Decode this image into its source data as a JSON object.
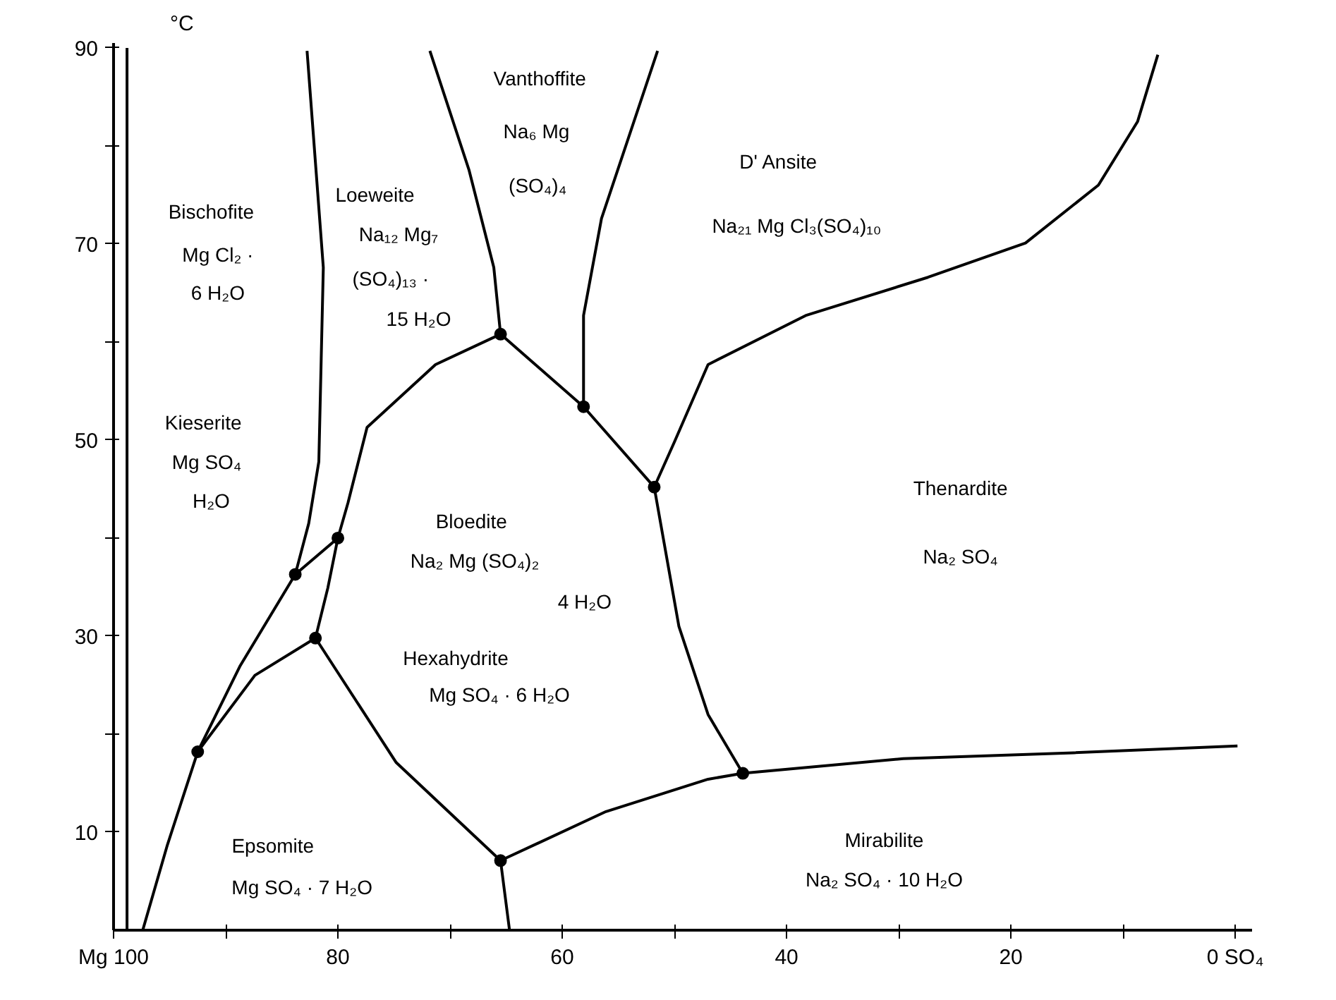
{
  "chart_data": {
    "type": "line",
    "ylabel": "°C",
    "xlim": [
      100,
      -1.5
    ],
    "ylim": [
      0,
      90.5
    ],
    "xticks": [
      {
        "value": 100,
        "label": "Mg 100"
      },
      {
        "value": 90,
        "label": null
      },
      80,
      {
        "value": 70,
        "label": null
      },
      60,
      {
        "value": 50,
        "label": null
      },
      40,
      {
        "value": 30,
        "label": null
      },
      20,
      {
        "value": 10,
        "label": null
      },
      {
        "value": 0,
        "label": "0 SO₄"
      }
    ],
    "yticks": [
      10,
      {
        "value": 20,
        "label": null
      },
      30,
      {
        "value": 40,
        "label": null
      },
      50,
      {
        "value": 60,
        "label": null
      },
      70,
      {
        "value": 80,
        "label": null
      },
      90
    ],
    "series": [
      {
        "color": "#000000",
        "x": [
          98.8,
          98.8
        ],
        "values": [
          0,
          90
        ]
      },
      {
        "color": "#000000",
        "x": [
          82.75,
          81.3,
          81.7,
          82.6,
          83.8
        ],
        "values": [
          89.7,
          67.6,
          47.8,
          41.5,
          36.3
        ]
      },
      {
        "color": "#000000",
        "x": [
          97.4,
          95.2,
          92.5,
          88.7,
          83.8,
          80.0
        ],
        "values": [
          0,
          8.7,
          18.2,
          27.0,
          36.3,
          40.0
        ]
      },
      {
        "color": "#000000",
        "x": [
          92.5,
          87.4,
          82.0
        ],
        "values": [
          18.2,
          26.0,
          29.8
        ]
      },
      {
        "color": "#000000",
        "x": [
          65.5,
          71.3,
          77.4,
          79.1,
          80.0,
          80.9,
          82.0
        ],
        "values": [
          60.8,
          57.7,
          51.3,
          43.6,
          40.0,
          34.9,
          29.8
        ]
      },
      {
        "color": "#000000",
        "x": [
          82.0,
          74.8,
          65.5,
          64.7
        ],
        "values": [
          29.8,
          17.1,
          7.1,
          0
        ]
      },
      {
        "color": "#000000",
        "x": [
          65.5,
          56.1,
          47.0,
          43.9,
          29.6,
          14.4,
          -0.2
        ],
        "values": [
          7.1,
          12.1,
          15.4,
          16.0,
          17.5,
          18.1,
          18.8
        ]
      },
      {
        "color": "#000000",
        "x": [
          71.8,
          68.3,
          66.1,
          65.5,
          58.1,
          51.8,
          49.6,
          47.0,
          43.9
        ],
        "values": [
          89.7,
          77.5,
          67.6,
          60.8,
          53.4,
          45.2,
          31.0,
          22.0,
          16.0
        ]
      },
      {
        "color": "#000000",
        "x": [
          51.5,
          56.5,
          58.1,
          58.1
        ],
        "values": [
          89.7,
          72.6,
          62.7,
          53.4
        ]
      },
      {
        "color": "#000000",
        "x": [
          51.8,
          50.0,
          47.0,
          38.3,
          27.4,
          18.7,
          12.2,
          8.7,
          6.9
        ],
        "values": [
          45.2,
          49.8,
          57.7,
          62.7,
          66.6,
          70.1,
          76.0,
          82.5,
          89.3
        ]
      },
      {
        "type": "scatter",
        "marker": "circle",
        "color": "#000000",
        "x": [
          92.5,
          83.8,
          80.0,
          82.0,
          65.5,
          65.5,
          58.1,
          51.8,
          43.9
        ],
        "values": [
          18.2,
          36.3,
          40.0,
          29.8,
          7.1,
          60.8,
          53.4,
          45.2,
          16.0
        ]
      }
    ],
    "annotations": [
      "Bischofite",
      "Mg Cl₂ ·",
      "6 H₂O",
      "Loeweite",
      "Na₁₂ Mg₇",
      "(SO₄)₁₃ ·",
      "15 H₂O",
      "Vanthoffite",
      "Na₆ Mg",
      "(SO₄)₄",
      "D' Ansite",
      "Na₂₁ Mg Cl₃(SO₄)₁₀",
      "Kieserite",
      "Mg SO₄",
      "H₂O",
      "Bloedite",
      "Na₂ Mg (SO₄)₂",
      "4 H₂O",
      "Hexahydrite",
      "Mg SO₄ · 6 H₂O",
      "Thenardite",
      "Na₂ SO₄",
      "Epsomite",
      "Mg SO₄ · 7 H₂O",
      "Mirabilite",
      "Na₂ SO₄ · 10 H₂O"
    ]
  }
}
